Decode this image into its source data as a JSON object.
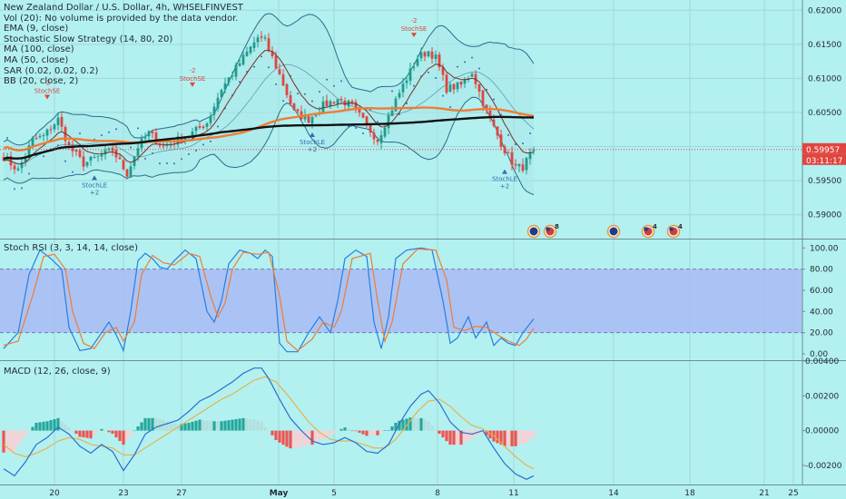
{
  "colors": {
    "background": "#b3f0f0",
    "grid": "#9fd9d9",
    "candle_up": "#1e9c8c",
    "candle_down": "#e0453f",
    "ema": "#7a2f26",
    "ma100": "#111111",
    "ma50": "#f07c35",
    "bb": "#2a6c8c",
    "bb_fill": "#a9e8ea",
    "sar": "#2f6fb0",
    "rsi_band": "#a8b4f5",
    "rsi_k": "#2a7de0",
    "rsi_d": "#f07c35",
    "macd_line": "#2a6fd0",
    "signal_line": "#e8b040",
    "hist_pos_strong": "#26a69a",
    "hist_pos_weak": "#b2dfdb",
    "hist_neg_strong": "#ef5350",
    "hist_neg_weak": "#ffcdd2",
    "price_label": "#e0453f",
    "axis_text": "#1f2a33"
  },
  "legend": {
    "title": "New Zealand Dollar / U.S. Dollar, 4h, WHSELFINVEST",
    "vol": "Vol (20): No volume is provided by the data vendor.",
    "ema": "EMA (9, close)",
    "strategy": "Stochastic Slow Strategy (14, 80, 20)",
    "ma100": "MA (100, close)",
    "ma50": "MA (50, close)",
    "sar": "SAR (0.02, 0.02, 0.2)",
    "bb": "BB (20, close, 2)"
  },
  "rsi_title": "Stoch RSI (3, 3, 14, 14, close)",
  "macd_title": "MACD (12, 26, close, 9)",
  "price_label": {
    "value": "0.59957",
    "timer": "03:11:17"
  },
  "event_badges": [
    {
      "glyph": "●",
      "flag": "nz",
      "count": ""
    },
    {
      "glyph": "●",
      "flag": "us",
      "count": "8"
    },
    {
      "glyph": "●",
      "flag": "nz",
      "count": ""
    },
    {
      "glyph": "●",
      "flag": "us",
      "count": "4"
    },
    {
      "glyph": "●",
      "flag": "us",
      "count": "4"
    }
  ],
  "chart_data": [
    {
      "type": "candlestick",
      "title": "New Zealand Dollar / U.S. Dollar, 4h, WHSELFINVEST",
      "x_ticks": [
        "20",
        "23",
        "27",
        "May",
        "5",
        "8",
        "11",
        "14",
        "18",
        "21",
        "25"
      ],
      "y_ticks": [
        "0.62000",
        "0.61500",
        "0.61000",
        "0.60500",
        "0.60000",
        "0.59500",
        "0.59000"
      ],
      "ylim": [
        0.5865,
        0.6215
      ],
      "anchors": [
        [
          0,
          0.5985
        ],
        [
          4,
          0.5965
        ],
        [
          8,
          0.601
        ],
        [
          11,
          0.6015
        ],
        [
          15,
          0.604
        ],
        [
          18,
          0.6
        ],
        [
          22,
          0.5975
        ],
        [
          26,
          0.5985
        ],
        [
          30,
          0.5995
        ],
        [
          34,
          0.596
        ],
        [
          37,
          0.6
        ],
        [
          40,
          0.602
        ],
        [
          44,
          0.6
        ],
        [
          48,
          0.601
        ],
        [
          52,
          0.602
        ],
        [
          56,
          0.6035
        ],
        [
          60,
          0.6085
        ],
        [
          64,
          0.6115
        ],
        [
          68,
          0.6145
        ],
        [
          70,
          0.616
        ],
        [
          72,
          0.6155
        ],
        [
          76,
          0.6105
        ],
        [
          80,
          0.605
        ],
        [
          84,
          0.604
        ],
        [
          88,
          0.606
        ],
        [
          92,
          0.607
        ],
        [
          96,
          0.606
        ],
        [
          100,
          0.603
        ],
        [
          103,
          0.601
        ],
        [
          106,
          0.6045
        ],
        [
          110,
          0.609
        ],
        [
          114,
          0.613
        ],
        [
          117,
          0.614
        ],
        [
          119,
          0.613
        ],
        [
          122,
          0.6085
        ],
        [
          126,
          0.609
        ],
        [
          129,
          0.611
        ],
        [
          133,
          0.605
        ],
        [
          137,
          0.6005
        ],
        [
          139,
          0.5985
        ],
        [
          141,
          0.597
        ],
        [
          143,
          0.597
        ],
        [
          146,
          0.5996
        ]
      ],
      "last_price": 0.59957,
      "signals": [
        {
          "label": "StochSE",
          "qty": "-2",
          "dir": "sell",
          "bar": 12,
          "price": 0.6072
        },
        {
          "label": "StochLE",
          "qty": "+2",
          "dir": "buy",
          "bar": 25,
          "price": 0.5955
        },
        {
          "label": "StochSE",
          "qty": "-2",
          "dir": "sell",
          "bar": 52,
          "price": 0.609
        },
        {
          "label": "StochLE",
          "qty": "+2",
          "dir": "buy",
          "bar": 85,
          "price": 0.6018
        },
        {
          "label": "StochSE",
          "qty": "-2",
          "dir": "sell",
          "bar": 113,
          "price": 0.6163
        },
        {
          "label": "StochLE",
          "qty": "+2",
          "dir": "buy",
          "bar": 138,
          "price": 0.5964
        }
      ]
    },
    {
      "type": "line",
      "title": "Stoch RSI (3, 3, 14, 14, close)",
      "y_ticks": [
        "100.00",
        "80.00",
        "60.00",
        "40.00",
        "20.00",
        "0.00"
      ],
      "ylim": [
        -6,
        108
      ],
      "band": [
        20,
        80
      ],
      "k_anchors": [
        [
          0,
          5
        ],
        [
          4,
          20
        ],
        [
          7,
          75
        ],
        [
          10,
          98
        ],
        [
          13,
          90
        ],
        [
          16,
          80
        ],
        [
          18,
          25
        ],
        [
          21,
          3
        ],
        [
          24,
          5
        ],
        [
          26,
          15
        ],
        [
          29,
          30
        ],
        [
          31,
          18
        ],
        [
          33,
          3
        ],
        [
          35,
          40
        ],
        [
          37,
          88
        ],
        [
          39,
          95
        ],
        [
          41,
          90
        ],
        [
          43,
          82
        ],
        [
          45,
          80
        ],
        [
          47,
          88
        ],
        [
          50,
          98
        ],
        [
          53,
          90
        ],
        [
          56,
          40
        ],
        [
          58,
          30
        ],
        [
          60,
          50
        ],
        [
          62,
          85
        ],
        [
          65,
          98
        ],
        [
          68,
          95
        ],
        [
          70,
          90
        ],
        [
          72,
          98
        ],
        [
          74,
          92
        ],
        [
          76,
          10
        ],
        [
          78,
          2
        ],
        [
          81,
          2
        ],
        [
          84,
          20
        ],
        [
          87,
          35
        ],
        [
          90,
          20
        ],
        [
          92,
          50
        ],
        [
          94,
          90
        ],
        [
          97,
          98
        ],
        [
          100,
          92
        ],
        [
          102,
          30
        ],
        [
          104,
          5
        ],
        [
          106,
          35
        ],
        [
          108,
          90
        ],
        [
          111,
          98
        ],
        [
          115,
          100
        ],
        [
          118,
          98
        ],
        [
          121,
          50
        ],
        [
          123,
          10
        ],
        [
          125,
          15
        ],
        [
          128,
          35
        ],
        [
          130,
          15
        ],
        [
          133,
          30
        ],
        [
          135,
          8
        ],
        [
          137,
          15
        ],
        [
          139,
          10
        ],
        [
          141,
          8
        ],
        [
          143,
          20
        ],
        [
          146,
          33
        ]
      ],
      "d_anchors": [
        [
          0,
          8
        ],
        [
          4,
          12
        ],
        [
          8,
          55
        ],
        [
          11,
          92
        ],
        [
          14,
          94
        ],
        [
          17,
          80
        ],
        [
          19,
          40
        ],
        [
          22,
          10
        ],
        [
          25,
          5
        ],
        [
          28,
          20
        ],
        [
          31,
          25
        ],
        [
          33,
          12
        ],
        [
          36,
          30
        ],
        [
          38,
          75
        ],
        [
          41,
          93
        ],
        [
          44,
          86
        ],
        [
          47,
          84
        ],
        [
          51,
          95
        ],
        [
          54,
          92
        ],
        [
          57,
          55
        ],
        [
          59,
          35
        ],
        [
          61,
          48
        ],
        [
          63,
          80
        ],
        [
          66,
          96
        ],
        [
          70,
          94
        ],
        [
          73,
          96
        ],
        [
          76,
          55
        ],
        [
          78,
          12
        ],
        [
          81,
          3
        ],
        [
          85,
          14
        ],
        [
          88,
          30
        ],
        [
          91,
          25
        ],
        [
          93,
          40
        ],
        [
          96,
          90
        ],
        [
          101,
          95
        ],
        [
          103,
          50
        ],
        [
          105,
          12
        ],
        [
          107,
          30
        ],
        [
          110,
          85
        ],
        [
          114,
          99
        ],
        [
          119,
          98
        ],
        [
          122,
          70
        ],
        [
          124,
          25
        ],
        [
          127,
          22
        ],
        [
          130,
          26
        ],
        [
          133,
          25
        ],
        [
          136,
          18
        ],
        [
          139,
          12
        ],
        [
          142,
          8
        ],
        [
          144,
          14
        ],
        [
          146,
          24
        ]
      ]
    },
    {
      "type": "line",
      "title": "MACD (12, 26, close, 9)",
      "y_ticks": [
        "0.00400",
        "0.00200",
        "0.00000",
        "-0.00200"
      ],
      "ylim": [
        -0.0031,
        0.004
      ],
      "macd_anchors": [
        [
          0,
          -0.0022
        ],
        [
          3,
          -0.0026
        ],
        [
          6,
          -0.0018
        ],
        [
          9,
          -0.0008
        ],
        [
          12,
          -0.0004
        ],
        [
          15,
          0.0002
        ],
        [
          18,
          -0.0002
        ],
        [
          21,
          -0.0009
        ],
        [
          24,
          -0.0013
        ],
        [
          27,
          -0.0008
        ],
        [
          30,
          -0.0012
        ],
        [
          33,
          -0.0023
        ],
        [
          36,
          -0.0014
        ],
        [
          39,
          -0.0002
        ],
        [
          42,
          0.0002
        ],
        [
          45,
          0.0004
        ],
        [
          48,
          0.0006
        ],
        [
          51,
          0.0011
        ],
        [
          54,
          0.0017
        ],
        [
          57,
          0.002
        ],
        [
          60,
          0.0024
        ],
        [
          63,
          0.0028
        ],
        [
          66,
          0.0033
        ],
        [
          69,
          0.0036
        ],
        [
          71,
          0.0036
        ],
        [
          73,
          0.003
        ],
        [
          76,
          0.0018
        ],
        [
          79,
          0.0007
        ],
        [
          82,
          0.0
        ],
        [
          85,
          -0.0006
        ],
        [
          88,
          -0.0008
        ],
        [
          91,
          -0.0007
        ],
        [
          94,
          -0.0004
        ],
        [
          97,
          -0.0007
        ],
        [
          100,
          -0.0012
        ],
        [
          103,
          -0.0013
        ],
        [
          106,
          -0.0008
        ],
        [
          109,
          0.0004
        ],
        [
          112,
          0.0014
        ],
        [
          115,
          0.0021
        ],
        [
          117,
          0.0023
        ],
        [
          120,
          0.0016
        ],
        [
          123,
          0.0005
        ],
        [
          126,
          -0.0001
        ],
        [
          129,
          -0.0002
        ],
        [
          132,
          0.0
        ],
        [
          135,
          -0.001
        ],
        [
          138,
          -0.0019
        ],
        [
          141,
          -0.0025
        ],
        [
          144,
          -0.0028
        ],
        [
          146,
          -0.0026
        ]
      ],
      "signal_anchors": [
        [
          0,
          -0.0008
        ],
        [
          3,
          -0.0013
        ],
        [
          6,
          -0.0015
        ],
        [
          9,
          -0.0013
        ],
        [
          12,
          -0.001
        ],
        [
          15,
          -0.0006
        ],
        [
          18,
          -0.0004
        ],
        [
          21,
          -0.0005
        ],
        [
          24,
          -0.0008
        ],
        [
          27,
          -0.0009
        ],
        [
          30,
          -0.001
        ],
        [
          33,
          -0.0014
        ],
        [
          36,
          -0.0014
        ],
        [
          39,
          -0.001
        ],
        [
          42,
          -0.0006
        ],
        [
          45,
          -0.0002
        ],
        [
          48,
          0.0002
        ],
        [
          51,
          0.0006
        ],
        [
          54,
          0.001
        ],
        [
          57,
          0.0014
        ],
        [
          60,
          0.0018
        ],
        [
          63,
          0.0021
        ],
        [
          66,
          0.0025
        ],
        [
          69,
          0.0029
        ],
        [
          72,
          0.0031
        ],
        [
          75,
          0.0028
        ],
        [
          78,
          0.0021
        ],
        [
          81,
          0.0013
        ],
        [
          84,
          0.0005
        ],
        [
          87,
          -0.0001
        ],
        [
          90,
          -0.0005
        ],
        [
          93,
          -0.0006
        ],
        [
          96,
          -0.0006
        ],
        [
          99,
          -0.0008
        ],
        [
          102,
          -0.001
        ],
        [
          105,
          -0.001
        ],
        [
          108,
          -0.0005
        ],
        [
          111,
          0.0003
        ],
        [
          114,
          0.0011
        ],
        [
          117,
          0.0017
        ],
        [
          120,
          0.0018
        ],
        [
          123,
          0.0014
        ],
        [
          126,
          0.0008
        ],
        [
          129,
          0.0003
        ],
        [
          132,
          0.0001
        ],
        [
          135,
          -0.0003
        ],
        [
          138,
          -0.0009
        ],
        [
          141,
          -0.0015
        ],
        [
          144,
          -0.002
        ],
        [
          146,
          -0.0022
        ]
      ]
    }
  ]
}
